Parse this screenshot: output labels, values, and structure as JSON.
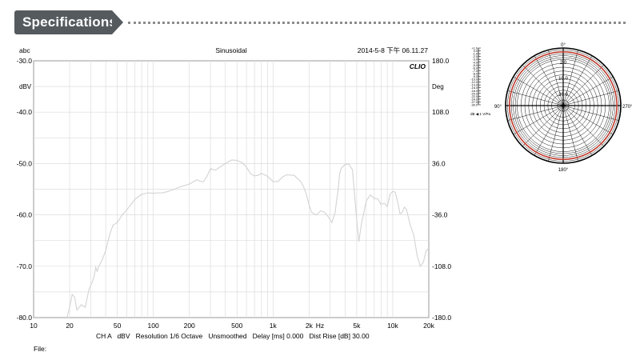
{
  "header": {
    "title": "Specifications"
  },
  "chart_data": [
    {
      "type": "line",
      "title": "Sinusoidal",
      "top_left_label": "abc",
      "timestamp": "2014-5-8 下午 06.11.27",
      "brand": "CLIO",
      "y_unit_label": "dBV",
      "y2_unit_label": "Deg",
      "x_unit_label": "Hz",
      "xscale": "log",
      "xlim": [
        10,
        20000
      ],
      "ylim": [
        -80,
        -30
      ],
      "y2lim": [
        -180,
        180
      ],
      "grid": true,
      "x_ticks": [
        {
          "v": 10,
          "label": "10"
        },
        {
          "v": 20,
          "label": "20"
        },
        {
          "v": 50,
          "label": "50"
        },
        {
          "v": 100,
          "label": "100"
        },
        {
          "v": 200,
          "label": "200"
        },
        {
          "v": 500,
          "label": "500"
        },
        {
          "v": 1000,
          "label": "1k"
        },
        {
          "v": 2000,
          "label": "2k"
        },
        {
          "v": 5000,
          "label": "5k"
        },
        {
          "v": 10000,
          "label": "10k"
        },
        {
          "v": 20000,
          "label": "20k"
        }
      ],
      "y_ticks": [
        {
          "v": -30,
          "label": "-30.0"
        },
        {
          "v": -40,
          "label": "-40.0"
        },
        {
          "v": -50,
          "label": "-50.0"
        },
        {
          "v": -60,
          "label": "-60.0"
        },
        {
          "v": -70,
          "label": "-70.0"
        },
        {
          "v": -80,
          "label": "-80.0"
        }
      ],
      "y2_ticks": [
        {
          "v": 180,
          "label": "180.0"
        },
        {
          "v": 108,
          "label": "108.0"
        },
        {
          "v": 36,
          "label": "36.0"
        },
        {
          "v": -36,
          "label": "-36.0"
        },
        {
          "v": -108,
          "label": "-108.0"
        },
        {
          "v": -180,
          "label": "-180.0"
        }
      ],
      "footer": "CH A   dBV   Resolution 1/6 Octave   Unsmoothed   Delay [ms] 0.000   Dist Rise [dB] 30.00",
      "file_label": "File:",
      "series": [
        {
          "color": "#d3d3d3",
          "x": [
            19,
            20,
            21,
            22,
            23,
            24,
            25,
            27,
            29,
            31,
            32,
            33,
            34,
            35,
            37,
            40,
            43,
            46,
            50,
            55,
            60,
            65,
            70,
            80,
            90,
            100,
            110,
            120,
            130,
            150,
            170,
            200,
            230,
            260,
            280,
            300,
            330,
            360,
            400,
            450,
            500,
            550,
            600,
            650,
            700,
            750,
            800,
            900,
            1000,
            1100,
            1200,
            1300,
            1500,
            1700,
            1800,
            1900,
            2000,
            2100,
            2200,
            2300,
            2500,
            2700,
            2900,
            3100,
            3300,
            3500,
            3600,
            3700,
            3800,
            4000,
            4300,
            4600,
            4800,
            5000,
            5200,
            5500,
            6000,
            6500,
            7000,
            7500,
            8000,
            8500,
            9000,
            9500,
            10000,
            10500,
            11000,
            11500,
            12000,
            12500,
            13000,
            14000,
            15000,
            16000,
            17000,
            18000,
            19000,
            20000
          ],
          "y": [
            -80,
            -78,
            -75.5,
            -76,
            -78.5,
            -78,
            -77.5,
            -78,
            -74.5,
            -73,
            -72,
            -70.2,
            -71,
            -70,
            -69,
            -67,
            -64,
            -62,
            -61.5,
            -60,
            -59,
            -58,
            -57,
            -56,
            -55.7,
            -55.8,
            -55.7,
            -55.7,
            -55.5,
            -55,
            -54.5,
            -54,
            -53.2,
            -53.6,
            -52.5,
            -51,
            -51.3,
            -50.7,
            -50,
            -49.3,
            -49.4,
            -49.8,
            -50.7,
            -52,
            -52.4,
            -52.3,
            -51.9,
            -52.5,
            -53.5,
            -53.5,
            -52.6,
            -52.2,
            -52.3,
            -53.5,
            -54.5,
            -56,
            -58,
            -59.5,
            -59.8,
            -60,
            -59.2,
            -59.5,
            -60.4,
            -61.5,
            -59.5,
            -55,
            -52,
            -51,
            -50.7,
            -50.2,
            -50.1,
            -51.2,
            -56,
            -61,
            -65.2,
            -61.5,
            -57.3,
            -56.1,
            -56.8,
            -56.9,
            -58,
            -57.7,
            -58.4,
            -56,
            -55.4,
            -55.6,
            -57.5,
            -59.8,
            -59.5,
            -58.5,
            -58.9,
            -62,
            -64,
            -68,
            -70,
            -69.2,
            -67,
            -66.5
          ]
        }
      ]
    },
    {
      "type": "polar",
      "angle_labels": [
        "0°",
        "90°",
        "180°",
        "270°"
      ],
      "ring_labels": [
        "2.0",
        "10.0",
        "20.0"
      ],
      "scale_labels": [
        "+1.0",
        "0.0",
        "-1.0",
        "-2.0",
        "-3.0",
        "-4.0",
        "-5.0",
        "-6.0",
        "-7.0",
        "-8.0",
        "-9.0",
        "-10.0",
        "-12.0",
        "-14.0",
        "-16.0",
        "-18.0",
        "-20.0",
        "-22.0",
        "-24.0",
        "-27.0",
        "-30.0"
      ],
      "unit_label": "dB ◀ 1 V/Pa",
      "pattern_color": "#c0392b",
      "pattern_level_db": -2.0
    }
  ]
}
